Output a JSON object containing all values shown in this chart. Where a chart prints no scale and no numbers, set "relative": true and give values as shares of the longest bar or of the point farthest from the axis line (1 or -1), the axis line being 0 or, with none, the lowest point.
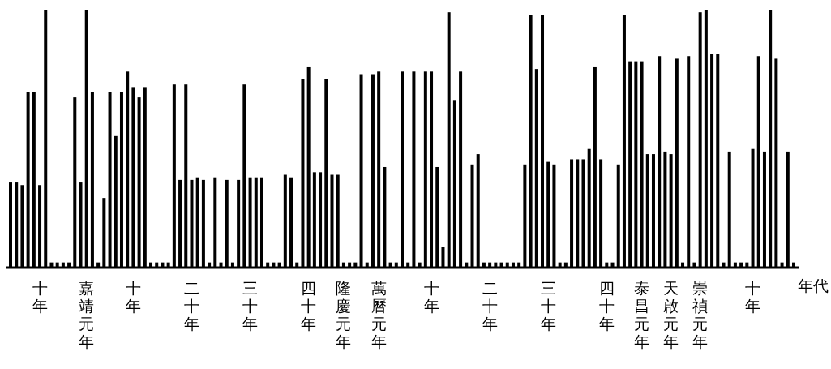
{
  "chart_data": {
    "type": "bar",
    "relative": true,
    "color": "#000000",
    "xlabel": "年代",
    "categories": [
      null,
      null,
      null,
      null,
      null,
      "十年",
      null,
      null,
      null,
      null,
      null,
      null,
      null,
      "嘉靖元年",
      null,
      null,
      null,
      null,
      null,
      null,
      null,
      "十年",
      null,
      null,
      null,
      null,
      null,
      null,
      null,
      null,
      null,
      "二十年",
      null,
      null,
      null,
      null,
      null,
      null,
      null,
      null,
      null,
      "三十年",
      null,
      null,
      null,
      null,
      null,
      null,
      null,
      null,
      null,
      "四十年",
      null,
      null,
      null,
      null,
      null,
      "隆慶元年",
      null,
      null,
      null,
      null,
      null,
      "萬曆元年",
      null,
      null,
      null,
      null,
      null,
      null,
      null,
      null,
      "十年",
      null,
      null,
      null,
      null,
      null,
      null,
      null,
      null,
      null,
      "二十年",
      null,
      null,
      null,
      null,
      null,
      null,
      null,
      null,
      null,
      "三十年",
      null,
      null,
      null,
      null,
      null,
      null,
      null,
      null,
      null,
      "四十年",
      null,
      null,
      null,
      null,
      null,
      "泰昌元年",
      null,
      null,
      null,
      null,
      "天啟元年",
      null,
      null,
      null,
      null,
      "崇禎元年",
      null,
      null,
      null,
      null,
      null,
      null,
      null,
      null,
      "十年",
      null,
      null,
      null,
      null,
      null,
      null,
      null
    ],
    "values": [
      0.33,
      0.33,
      0.32,
      0.68,
      0.68,
      0.32,
      1.0,
      0.02,
      0.02,
      0.02,
      0.02,
      0.66,
      0.33,
      1.0,
      0.68,
      0.02,
      0.27,
      0.68,
      0.51,
      0.68,
      0.76,
      0.7,
      0.66,
      0.7,
      0.02,
      0.02,
      0.02,
      0.02,
      0.71,
      0.34,
      0.71,
      0.34,
      0.35,
      0.34,
      0.02,
      0.35,
      0.02,
      0.34,
      0.02,
      0.34,
      0.71,
      0.35,
      0.35,
      0.35,
      0.02,
      0.02,
      0.02,
      0.36,
      0.35,
      0.02,
      0.73,
      0.78,
      0.37,
      0.37,
      0.73,
      0.36,
      0.36,
      0.02,
      0.02,
      0.02,
      0.75,
      0.02,
      0.75,
      0.76,
      0.39,
      0.02,
      0.02,
      0.76,
      0.02,
      0.76,
      0.02,
      0.76,
      0.76,
      0.39,
      0.08,
      0.99,
      0.65,
      0.76,
      0.02,
      0.4,
      0.44,
      0.02,
      0.02,
      0.02,
      0.02,
      0.02,
      0.02,
      0.02,
      0.4,
      0.98,
      0.77,
      0.98,
      0.41,
      0.4,
      0.02,
      0.02,
      0.42,
      0.42,
      0.42,
      0.46,
      0.78,
      0.42,
      0.02,
      0.02,
      0.4,
      0.98,
      0.8,
      0.8,
      0.8,
      0.44,
      0.44,
      0.82,
      0.45,
      0.44,
      0.81,
      0.02,
      0.82,
      0.02,
      0.99,
      1.0,
      0.83,
      0.83,
      0.02,
      0.45,
      0.02,
      0.02,
      0.02,
      0.46,
      0.82,
      0.45,
      1.0,
      0.81,
      0.02,
      0.45,
      0.02
    ]
  }
}
